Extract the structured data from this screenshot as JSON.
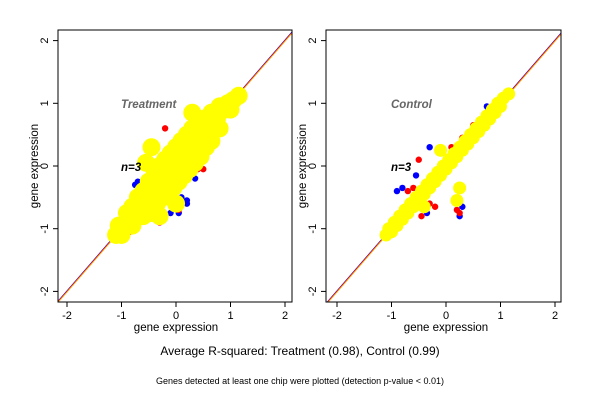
{
  "chart_data": [
    {
      "type": "scatter",
      "title": "Treatment",
      "annotation": "n=3",
      "xlabel": "gene expression",
      "ylabel": "gene expression",
      "xlim": [
        -2.2,
        2.2
      ],
      "ylim": [
        -2.2,
        2.2
      ],
      "xticks": [
        "-2",
        "-1",
        "0",
        "1",
        "2"
      ],
      "yticks": [
        "-2",
        "-1",
        "0",
        "1",
        "2"
      ],
      "grid": false,
      "reference_lines": [
        {
          "slope": 1,
          "intercept": 0,
          "colors": [
            "#0000ff",
            "#ff0000",
            "#ffa500"
          ]
        }
      ],
      "series": [
        {
          "color": "#0000ff",
          "points": [
            [
              -0.55,
              0.05
            ],
            [
              -0.7,
              -0.25
            ],
            [
              -0.75,
              -0.3
            ],
            [
              0.1,
              -0.5
            ],
            [
              0.2,
              -0.55
            ],
            [
              0.2,
              -0.6
            ],
            [
              -0.1,
              -0.75
            ],
            [
              0.05,
              -0.75
            ],
            [
              0.35,
              -0.2
            ],
            [
              -1.1,
              -1.0
            ],
            [
              0.85,
              1.0
            ]
          ]
        },
        {
          "color": "#ff0000",
          "points": [
            [
              -0.6,
              0.05
            ],
            [
              -0.45,
              0.3
            ],
            [
              -0.5,
              -0.05
            ],
            [
              -0.15,
              -0.5
            ],
            [
              0.0,
              -0.55
            ],
            [
              0.05,
              -0.7
            ],
            [
              -0.3,
              -0.9
            ],
            [
              0.4,
              -0.05
            ],
            [
              0.5,
              -0.05
            ],
            [
              0.55,
              0.55
            ],
            [
              0.6,
              0.9
            ],
            [
              0.75,
              0.4
            ],
            [
              -0.85,
              -1.05
            ],
            [
              -0.2,
              0.6
            ],
            [
              0.3,
              0.85
            ]
          ]
        },
        {
          "color": "#ffff00",
          "points": [
            [
              -1.1,
              -1.1
            ],
            [
              -1.05,
              -0.95
            ],
            [
              -1.0,
              -1.1
            ],
            [
              -0.9,
              -0.9
            ],
            [
              -0.9,
              -0.75
            ],
            [
              -0.8,
              -0.95
            ],
            [
              -0.8,
              -0.65
            ],
            [
              -0.7,
              -0.7
            ],
            [
              -0.7,
              -0.5
            ],
            [
              -0.6,
              -0.8
            ],
            [
              -0.6,
              -0.4
            ],
            [
              -0.6,
              -0.6
            ],
            [
              -0.5,
              -0.5
            ],
            [
              -0.5,
              -0.25
            ],
            [
              -0.45,
              -0.75
            ],
            [
              -0.4,
              -0.4
            ],
            [
              -0.4,
              -0.15
            ],
            [
              -0.35,
              -0.6
            ],
            [
              -0.3,
              -0.3
            ],
            [
              -0.3,
              0.0
            ],
            [
              -0.25,
              -0.5
            ],
            [
              -0.2,
              -0.2
            ],
            [
              -0.2,
              0.1
            ],
            [
              -0.15,
              -0.4
            ],
            [
              -0.1,
              -0.1
            ],
            [
              -0.1,
              0.2
            ],
            [
              -0.05,
              -0.35
            ],
            [
              0,
              0
            ],
            [
              0,
              0.3
            ],
            [
              0.05,
              -0.25
            ],
            [
              0.1,
              0.1
            ],
            [
              0.1,
              0.4
            ],
            [
              0.15,
              -0.15
            ],
            [
              0.2,
              0.2
            ],
            [
              0.2,
              0.5
            ],
            [
              0.25,
              -0.05
            ],
            [
              0.3,
              0.3
            ],
            [
              0.3,
              0.6
            ],
            [
              0.35,
              0.05
            ],
            [
              0.4,
              0.4
            ],
            [
              0.4,
              0.7
            ],
            [
              0.45,
              0.15
            ],
            [
              0.5,
              0.5
            ],
            [
              0.5,
              0.75
            ],
            [
              0.55,
              0.3
            ],
            [
              0.6,
              0.6
            ],
            [
              0.65,
              0.85
            ],
            [
              0.65,
              0.4
            ],
            [
              0.75,
              0.75
            ],
            [
              0.8,
              0.95
            ],
            [
              0.8,
              0.6
            ],
            [
              0.9,
              0.9
            ],
            [
              0.95,
              1.0
            ],
            [
              1.0,
              0.9
            ],
            [
              1.05,
              1.05
            ],
            [
              1.15,
              1.12
            ],
            [
              -0.55,
              0.05
            ],
            [
              -0.45,
              0.3
            ],
            [
              0.0,
              -0.6
            ],
            [
              -0.3,
              -0.8
            ],
            [
              0.3,
              0.85
            ],
            [
              0.55,
              0.4
            ]
          ]
        }
      ]
    },
    {
      "type": "scatter",
      "title": "Control",
      "annotation": "n=3",
      "xlabel": "gene expression",
      "ylabel": "gene expression",
      "xlim": [
        -2.2,
        2.2
      ],
      "ylim": [
        -2.2,
        2.2
      ],
      "xticks": [
        "-2",
        "-1",
        "0",
        "1",
        "2"
      ],
      "yticks": [
        "-2",
        "-1",
        "0",
        "1",
        "2"
      ],
      "grid": false,
      "reference_lines": [
        {
          "slope": 1,
          "intercept": 0,
          "colors": [
            "#0000ff",
            "#ff0000",
            "#ffa500"
          ]
        }
      ],
      "series": [
        {
          "color": "#0000ff",
          "points": [
            [
              -0.8,
              -0.35
            ],
            [
              -0.9,
              -0.4
            ],
            [
              -0.55,
              -0.15
            ],
            [
              -0.35,
              -0.75
            ],
            [
              0.25,
              -0.8
            ],
            [
              0.3,
              -0.65
            ],
            [
              0.5,
              0.5
            ],
            [
              0.45,
              0.45
            ],
            [
              -1.0,
              -1.1
            ],
            [
              0.75,
              0.95
            ],
            [
              -0.3,
              0.3
            ],
            [
              0.2,
              0.25
            ]
          ]
        },
        {
          "color": "#ff0000",
          "points": [
            [
              -0.5,
              0.1
            ],
            [
              -0.7,
              -0.4
            ],
            [
              -0.6,
              -0.35
            ],
            [
              -0.3,
              -0.6
            ],
            [
              -0.2,
              -0.65
            ],
            [
              -0.45,
              -0.8
            ],
            [
              0.2,
              -0.7
            ],
            [
              0.25,
              -0.75
            ],
            [
              0.1,
              0.3
            ],
            [
              0.5,
              0.65
            ],
            [
              -0.2,
              -0.3
            ],
            [
              0.3,
              0.45
            ]
          ]
        },
        {
          "color": "#ffff00",
          "points": [
            [
              -1.1,
              -1.1
            ],
            [
              -1.05,
              -1.0
            ],
            [
              -1.0,
              -1.05
            ],
            [
              -0.95,
              -0.9
            ],
            [
              -0.9,
              -0.95
            ],
            [
              -0.85,
              -0.8
            ],
            [
              -0.8,
              -0.85
            ],
            [
              -0.75,
              -0.7
            ],
            [
              -0.7,
              -0.75
            ],
            [
              -0.65,
              -0.6
            ],
            [
              -0.6,
              -0.65
            ],
            [
              -0.55,
              -0.5
            ],
            [
              -0.5,
              -0.55
            ],
            [
              -0.45,
              -0.4
            ],
            [
              -0.4,
              -0.45
            ],
            [
              -0.35,
              -0.3
            ],
            [
              -0.3,
              -0.35
            ],
            [
              -0.25,
              -0.2
            ],
            [
              -0.2,
              -0.25
            ],
            [
              -0.15,
              -0.1
            ],
            [
              -0.1,
              -0.15
            ],
            [
              -0.05,
              0.0
            ],
            [
              0,
              -0.05
            ],
            [
              0.05,
              0.1
            ],
            [
              0.1,
              0.05
            ],
            [
              0.15,
              0.2
            ],
            [
              0.2,
              0.15
            ],
            [
              0.25,
              0.3
            ],
            [
              0.3,
              0.25
            ],
            [
              0.35,
              0.4
            ],
            [
              0.4,
              0.35
            ],
            [
              0.45,
              0.5
            ],
            [
              0.5,
              0.45
            ],
            [
              0.55,
              0.6
            ],
            [
              0.6,
              0.55
            ],
            [
              0.65,
              0.7
            ],
            [
              0.7,
              0.65
            ],
            [
              0.75,
              0.8
            ],
            [
              0.8,
              0.75
            ],
            [
              0.85,
              0.9
            ],
            [
              0.9,
              0.85
            ],
            [
              0.95,
              1.0
            ],
            [
              1.0,
              0.95
            ],
            [
              1.05,
              1.08
            ],
            [
              1.15,
              1.15
            ],
            [
              -0.45,
              -0.6
            ],
            [
              0.2,
              -0.55
            ],
            [
              -0.1,
              0.25
            ],
            [
              0.25,
              -0.35
            ],
            [
              -0.4,
              -0.65
            ]
          ]
        }
      ]
    }
  ],
  "footer": {
    "summary": "Average R-squared: Treatment (0.98), Control (0.99)",
    "note": "Genes detected at least one chip were plotted (detection p-value < 0.01)"
  }
}
